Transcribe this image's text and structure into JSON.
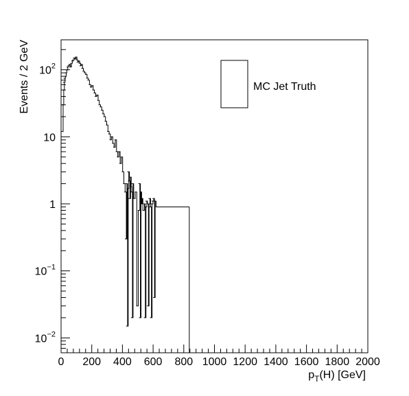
{
  "chart_data": {
    "type": "histogram",
    "xlabel": {
      "main": "p",
      "sub": "T",
      "rest": "(H) [GeV]"
    },
    "ylabel": "Events / 2 GeV",
    "xlim": [
      0,
      2000
    ],
    "ylim": [
      0.006,
      280
    ],
    "yscale": "log",
    "bin_width": 2,
    "x_ticks": [
      "0",
      "200",
      "400",
      "600",
      "800",
      "1000",
      "1200",
      "1400",
      "1600",
      "1800",
      "2000"
    ],
    "x_tick_values": [
      0,
      200,
      400,
      600,
      800,
      1000,
      1200,
      1400,
      1600,
      1800,
      2000
    ],
    "y_ticks": [
      {
        "value": 0.01,
        "base": "10",
        "exp": "−2"
      },
      {
        "value": 0.1,
        "base": "10",
        "exp": "−1"
      },
      {
        "value": 1,
        "base": "1",
        "exp": ""
      },
      {
        "value": 10,
        "base": "10",
        "exp": ""
      },
      {
        "value": 100,
        "base": "10",
        "exp": "2"
      }
    ],
    "legend": {
      "placement": "top-right",
      "entry": "MC Jet Truth"
    },
    "series": [
      {
        "name": "MC Jet Truth",
        "x": [
          0,
          4,
          8,
          12,
          16,
          20,
          24,
          30,
          36,
          42,
          48,
          54,
          60,
          66,
          72,
          78,
          84,
          90,
          96,
          102,
          108,
          114,
          120,
          126,
          132,
          140,
          148,
          156,
          164,
          172,
          180,
          188,
          196,
          204,
          212,
          220,
          228,
          236,
          244,
          252,
          260,
          268,
          276,
          284,
          292,
          300,
          308,
          316,
          324,
          332,
          340,
          348,
          356,
          364,
          372,
          380,
          388,
          396,
          404,
          412,
          416,
          420,
          424,
          428,
          432,
          436,
          440,
          444,
          448,
          452,
          456,
          460,
          470,
          480,
          490,
          500,
          504,
          508,
          512,
          516,
          520,
          530,
          536,
          540,
          546,
          550,
          556,
          560,
          566,
          570,
          576,
          580,
          586,
          590,
          596,
          600,
          606,
          836
        ],
        "y": [
          12,
          30,
          50,
          65,
          75,
          80,
          90,
          100,
          110,
          115,
          120,
          110,
          125,
          135,
          140,
          150,
          145,
          155,
          140,
          130,
          135,
          125,
          115,
          120,
          105,
          95,
          90,
          85,
          75,
          70,
          60,
          55,
          58,
          50,
          45,
          40,
          42,
          35,
          30,
          28,
          25,
          22,
          20,
          17,
          15,
          12,
          11,
          9,
          10,
          8,
          7,
          9,
          6,
          5,
          6,
          4,
          5,
          3,
          2,
          1.5,
          0.3,
          2,
          0.015,
          1.7,
          3,
          2.2,
          1.2,
          2.5,
          1.8,
          1.5,
          0.02,
          2,
          1.2,
          1.5,
          0.03,
          0.8,
          2,
          0.02,
          1.5,
          1,
          1.2,
          0.8,
          1,
          0.02,
          0.9,
          1.1,
          1,
          0.03,
          1,
          1.2,
          0.9,
          0.02,
          1,
          1.1,
          1.2,
          0.04,
          1.1,
          0.9
        ]
      }
    ]
  }
}
